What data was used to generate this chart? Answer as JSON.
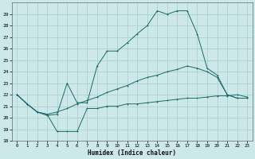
{
  "xlabel": "Humidex (Indice chaleur)",
  "background_color": "#cce8e8",
  "grid_color": "#aacccc",
  "line_color": "#1a6b6b",
  "xlim": [
    -0.5,
    23.5
  ],
  "ylim": [
    18,
    30
  ],
  "xticks": [
    0,
    1,
    2,
    3,
    4,
    5,
    6,
    7,
    8,
    9,
    10,
    11,
    12,
    13,
    14,
    15,
    16,
    17,
    18,
    19,
    20,
    21,
    22,
    23
  ],
  "yticks": [
    18,
    19,
    20,
    21,
    22,
    23,
    24,
    25,
    26,
    27,
    28,
    29
  ],
  "line1_x": [
    0,
    1,
    2,
    3,
    4,
    5,
    6,
    7,
    8,
    9,
    10,
    11,
    12,
    13,
    14,
    15,
    16,
    17,
    18,
    19,
    20,
    21,
    22,
    23
  ],
  "line1_y": [
    22.0,
    21.2,
    20.5,
    20.3,
    18.8,
    18.8,
    18.8,
    20.8,
    20.8,
    21.0,
    21.0,
    21.2,
    21.2,
    21.3,
    21.4,
    21.5,
    21.6,
    21.7,
    21.7,
    21.8,
    21.9,
    21.9,
    22.0,
    21.8
  ],
  "line2_x": [
    0,
    1,
    2,
    3,
    4,
    5,
    6,
    7,
    8,
    9,
    10,
    11,
    12,
    13,
    14,
    15,
    16,
    17,
    18,
    19,
    20,
    21,
    22,
    23
  ],
  "line2_y": [
    22.0,
    21.2,
    20.5,
    20.2,
    20.3,
    23.0,
    21.3,
    21.3,
    24.5,
    25.8,
    25.8,
    26.5,
    27.3,
    28.0,
    29.3,
    29.0,
    29.3,
    29.3,
    27.3,
    24.3,
    23.7,
    22.0,
    21.7,
    21.7
  ],
  "line3_x": [
    0,
    1,
    2,
    3,
    4,
    5,
    6,
    7,
    8,
    9,
    10,
    11,
    12,
    13,
    14,
    15,
    16,
    17,
    18,
    19,
    20,
    21,
    22,
    23
  ],
  "line3_y": [
    22.0,
    21.2,
    20.5,
    20.3,
    20.5,
    20.8,
    21.2,
    21.5,
    21.8,
    22.2,
    22.5,
    22.8,
    23.2,
    23.5,
    23.7,
    24.0,
    24.2,
    24.5,
    24.3,
    24.0,
    23.5,
    22.0,
    21.7,
    21.7
  ]
}
